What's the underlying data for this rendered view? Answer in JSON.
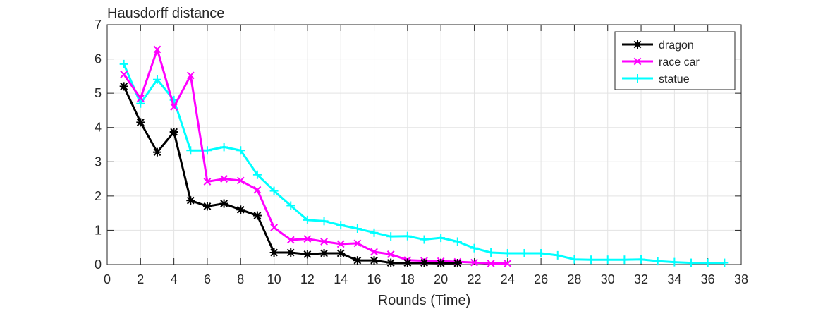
{
  "chart_data": {
    "type": "line",
    "title": "Hausdorff distance",
    "xlabel": "Rounds (Time)",
    "ylabel": "",
    "xlim": [
      0,
      38
    ],
    "ylim": [
      0,
      7
    ],
    "xticks": [
      0,
      2,
      4,
      6,
      8,
      10,
      12,
      14,
      16,
      18,
      20,
      22,
      24,
      26,
      28,
      30,
      32,
      34,
      36,
      38
    ],
    "yticks": [
      0,
      1,
      2,
      3,
      4,
      5,
      6,
      7
    ],
    "grid": true,
    "legend_position": "top-right",
    "series": [
      {
        "name": "dragon",
        "color": "#000000",
        "marker": "asterisk",
        "x": [
          1,
          2,
          3,
          4,
          5,
          6,
          7,
          8,
          9,
          10,
          11,
          12,
          13,
          14,
          15,
          16,
          17,
          18,
          19,
          20,
          21
        ],
        "values": [
          5.2,
          4.15,
          3.28,
          3.87,
          1.87,
          1.7,
          1.78,
          1.6,
          1.43,
          0.35,
          0.35,
          0.3,
          0.33,
          0.33,
          0.12,
          0.12,
          0.05,
          0.05,
          0.05,
          0.04,
          0.04
        ]
      },
      {
        "name": "race car",
        "color": "#ff00ff",
        "marker": "x",
        "x": [
          1,
          2,
          3,
          4,
          5,
          6,
          7,
          8,
          9,
          10,
          11,
          12,
          13,
          14,
          15,
          16,
          17,
          18,
          19,
          20,
          21,
          22,
          23,
          24
        ],
        "values": [
          5.55,
          4.85,
          6.28,
          4.6,
          5.52,
          2.42,
          2.5,
          2.45,
          2.18,
          1.08,
          0.72,
          0.75,
          0.67,
          0.6,
          0.62,
          0.37,
          0.3,
          0.13,
          0.11,
          0.1,
          0.08,
          0.06,
          0.03,
          0.03
        ]
      },
      {
        "name": "statue",
        "color": "#00ffff",
        "marker": "plus",
        "x": [
          1,
          2,
          3,
          4,
          5,
          6,
          7,
          8,
          9,
          10,
          11,
          12,
          13,
          14,
          15,
          16,
          17,
          18,
          19,
          20,
          21,
          22,
          23,
          24,
          25,
          26,
          27,
          28,
          29,
          30,
          31,
          32,
          33,
          34,
          35,
          36,
          37
        ],
        "values": [
          5.85,
          4.7,
          5.4,
          4.8,
          3.33,
          3.33,
          3.43,
          3.33,
          2.62,
          2.15,
          1.72,
          1.3,
          1.27,
          1.15,
          1.05,
          0.93,
          0.82,
          0.83,
          0.73,
          0.78,
          0.67,
          0.48,
          0.35,
          0.33,
          0.33,
          0.33,
          0.27,
          0.15,
          0.14,
          0.14,
          0.14,
          0.15,
          0.1,
          0.07,
          0.05,
          0.05,
          0.05
        ]
      }
    ]
  }
}
